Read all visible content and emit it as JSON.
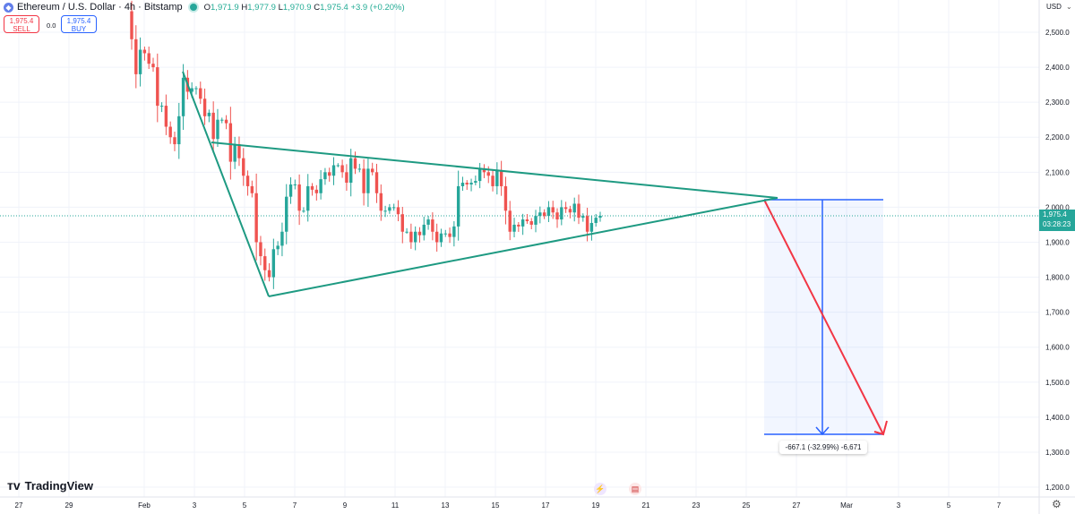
{
  "header": {
    "symbol": "Ethereum / U.S. Dollar · 4h · Bitstamp",
    "open_label": "O",
    "open": "1,971.9",
    "high_label": "H",
    "high": "1,977.9",
    "low_label": "L",
    "low": "1,970.9",
    "close_label": "C",
    "close": "1,975.4",
    "change": "+3.9 (+0.20%)"
  },
  "trade": {
    "sell_price": "1,975.4",
    "sell_label": "SELL",
    "spread": "0.0",
    "buy_price": "1,975.4",
    "buy_label": "BUY"
  },
  "axis": {
    "currency": "USD",
    "price_ticks": [
      "2,500.0",
      "2,400.0",
      "2,300.0",
      "2,200.0",
      "2,100.0",
      "2,000.0",
      "1,900.0",
      "1,800.0",
      "1,700.0",
      "1,600.0",
      "1,500.0",
      "1,400.0",
      "1,300.0",
      "1,200.0"
    ],
    "price_values": [
      2500,
      2400,
      2300,
      2200,
      2100,
      2000,
      1900,
      1800,
      1700,
      1600,
      1500,
      1400,
      1300,
      1200
    ],
    "date_ticks": [
      "27",
      "29",
      "Feb",
      "3",
      "5",
      "7",
      "9",
      "11",
      "13",
      "15",
      "17",
      "19",
      "21",
      "23",
      "25",
      "27",
      "Mar",
      "3",
      "5",
      "7"
    ]
  },
  "last_price": {
    "price": "1,975.4",
    "countdown": "03:28:23",
    "value": 1975.4
  },
  "measure": {
    "label": "-667.1 (-32.99%) -6,671"
  },
  "brand": {
    "name": "TradingView"
  },
  "colors": {
    "up": "#26a69a",
    "down": "#ef5350",
    "triangle": "#1e9a82",
    "measure": "#2962ff",
    "projection": "#f23645"
  },
  "candles": {
    "first_open": 2560,
    "closes": [
      2480,
      2380,
      2450,
      2440,
      2410,
      2400,
      2290,
      2290,
      2230,
      2200,
      2180,
      2260,
      2370,
      2330,
      2340,
      2340,
      2310,
      2260,
      2270,
      2195,
      2250,
      2250,
      2240,
      2130,
      2180,
      2140,
      2090,
      2060,
      2040,
      1900,
      1860,
      1820,
      1800,
      1880,
      1890,
      1930,
      2030,
      2065,
      2065,
      1990,
      1990,
      2060,
      2050,
      2040,
      2080,
      2100,
      2090,
      2120,
      2120,
      2100,
      2070,
      2140,
      2110,
      2110,
      2040,
      2110,
      2100,
      2040,
      1990,
      1990,
      2000,
      2000,
      1980,
      1930,
      1930,
      1900,
      1930,
      1920,
      1950,
      1965,
      1930,
      1900,
      1925,
      1925,
      1915,
      1945,
      2060,
      2070,
      2065,
      2070,
      2075,
      2110,
      2100,
      2090,
      2060,
      2105,
      2060,
      1990,
      1930,
      1950,
      1945,
      1965,
      1960,
      1950,
      1975,
      1985,
      1975,
      2000,
      1985,
      1965,
      2000,
      1995,
      1985,
      2010,
      1970,
      1975,
      1930,
      1955,
      1970,
      1975.4
    ]
  }
}
